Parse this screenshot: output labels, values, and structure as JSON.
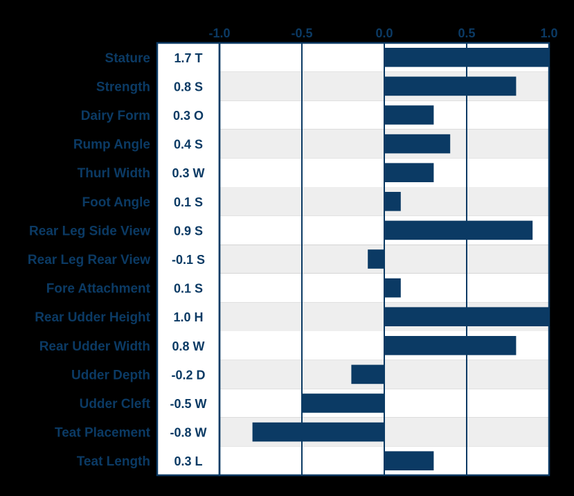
{
  "chart_data": {
    "type": "bar",
    "orientation": "horizontal",
    "title": "",
    "xlabel": "",
    "ylabel": "",
    "xlim": [
      -1.0,
      1.0
    ],
    "xticks": [
      -1.0,
      -0.5,
      0.0,
      0.5,
      1.0
    ],
    "xtick_labels": [
      "-1.0",
      "-0.5",
      "0.0",
      "0.5",
      "1.0"
    ],
    "grid": "vertical",
    "categories": [
      "Stature",
      "Strength",
      "Dairy Form",
      "Rump Angle",
      "Thurl Width",
      "Foot Angle",
      "Rear Leg Side View",
      "Rear Leg Rear View",
      "Fore Attachment",
      "Rear Udder Height",
      "Rear Udder Width",
      "Udder Depth",
      "Udder Cleft",
      "Teat Placement",
      "Teat Length"
    ],
    "value_labels": [
      "1.7 T",
      "0.8 S",
      "0.3 O",
      "0.4 S",
      "0.3 W",
      "0.1 S",
      "0.9 S",
      "-0.1 S",
      "0.1 S",
      "1.0 H",
      "0.8 W",
      "-0.2 D",
      "-0.5 W",
      "-0.8 W",
      "0.3 L"
    ],
    "values": [
      1.7,
      0.8,
      0.3,
      0.4,
      0.3,
      0.1,
      0.9,
      -0.1,
      0.1,
      1.0,
      0.8,
      -0.2,
      -0.5,
      -0.8,
      0.3
    ]
  },
  "colors": {
    "background": "#000000",
    "bar": "#0b3a64",
    "text": "#0b3a64",
    "border": "#0b3a64",
    "grid": "#0b3a64",
    "row_light": "#ffffff",
    "row_alt": "#eeeeee",
    "label_panel": "#ffffff"
  }
}
